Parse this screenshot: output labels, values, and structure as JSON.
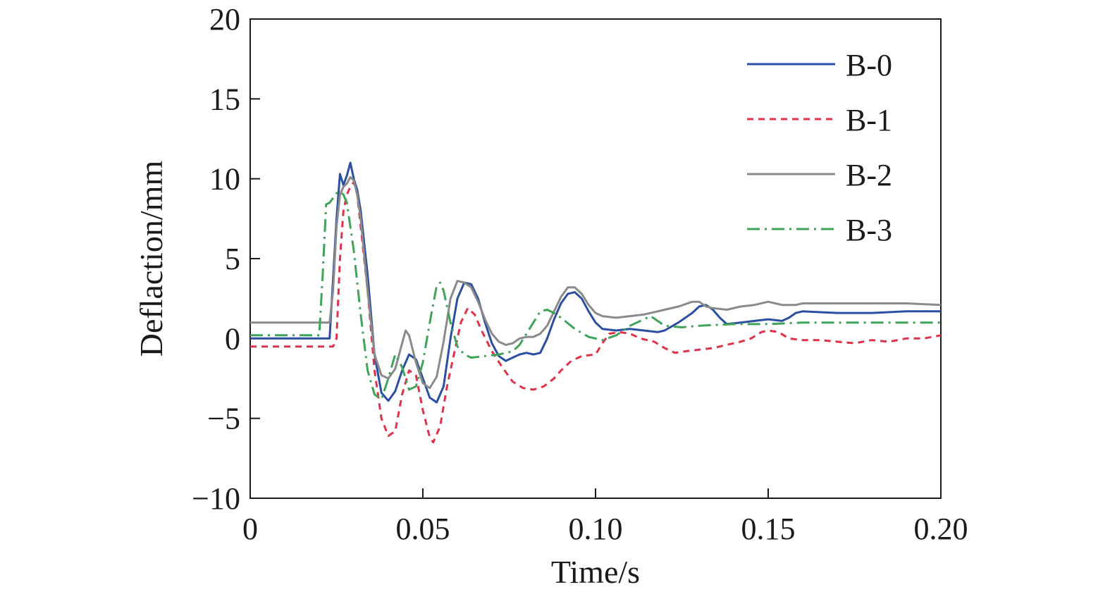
{
  "chart_data": {
    "type": "line",
    "xlabel": "Time/s",
    "ylabel": "Deflaction/mm",
    "xlim": [
      0,
      0.2
    ],
    "ylim": [
      -10,
      20
    ],
    "x_ticks": [
      0,
      0.05,
      0.1,
      0.15,
      0.2
    ],
    "x_tick_labels": [
      "0",
      "0.05",
      "0.10",
      "0.15",
      "0.20"
    ],
    "y_ticks": [
      -10,
      -5,
      0,
      5,
      10,
      15,
      20
    ],
    "y_tick_labels": [
      "−10",
      "−5",
      "0",
      "5",
      "10",
      "15",
      "20"
    ],
    "grid": false,
    "legend_position": "top-right",
    "series": [
      {
        "name": "B-0",
        "color": "#2b4ea2",
        "dash": "solid",
        "points": [
          [
            0,
            0
          ],
          [
            0.023,
            0
          ],
          [
            0.025,
            7.5
          ],
          [
            0.026,
            10.3
          ],
          [
            0.027,
            9.6
          ],
          [
            0.028,
            10.2
          ],
          [
            0.029,
            11
          ],
          [
            0.03,
            10
          ],
          [
            0.031,
            9.3
          ],
          [
            0.032,
            8
          ],
          [
            0.034,
            4
          ],
          [
            0.036,
            -1
          ],
          [
            0.038,
            -3.4
          ],
          [
            0.04,
            -3.9
          ],
          [
            0.042,
            -3.3
          ],
          [
            0.044,
            -2
          ],
          [
            0.046,
            -1
          ],
          [
            0.048,
            -1.3
          ],
          [
            0.05,
            -2.5
          ],
          [
            0.052,
            -3.7
          ],
          [
            0.054,
            -4
          ],
          [
            0.056,
            -3
          ],
          [
            0.058,
            0
          ],
          [
            0.06,
            2.5
          ],
          [
            0.062,
            3.5
          ],
          [
            0.064,
            3.4
          ],
          [
            0.066,
            2.5
          ],
          [
            0.068,
            1
          ],
          [
            0.07,
            -0.3
          ],
          [
            0.072,
            -1.1
          ],
          [
            0.074,
            -1.4
          ],
          [
            0.076,
            -1.2
          ],
          [
            0.078,
            -1
          ],
          [
            0.08,
            -0.9
          ],
          [
            0.082,
            -1
          ],
          [
            0.084,
            -0.9
          ],
          [
            0.086,
            0
          ],
          [
            0.088,
            1.2
          ],
          [
            0.09,
            2.2
          ],
          [
            0.092,
            2.8
          ],
          [
            0.094,
            2.9
          ],
          [
            0.096,
            2.5
          ],
          [
            0.098,
            1.7
          ],
          [
            0.1,
            1
          ],
          [
            0.102,
            0.6
          ],
          [
            0.106,
            0.5
          ],
          [
            0.11,
            0.6
          ],
          [
            0.114,
            0.5
          ],
          [
            0.118,
            0.4
          ],
          [
            0.12,
            0.5
          ],
          [
            0.124,
            1
          ],
          [
            0.128,
            1.6
          ],
          [
            0.13,
            2
          ],
          [
            0.132,
            2.1
          ],
          [
            0.134,
            1.8
          ],
          [
            0.136,
            1.3
          ],
          [
            0.138,
            0.9
          ],
          [
            0.142,
            1
          ],
          [
            0.146,
            1.1
          ],
          [
            0.15,
            1.2
          ],
          [
            0.154,
            1.1
          ],
          [
            0.156,
            1.3
          ],
          [
            0.158,
            1.6
          ],
          [
            0.16,
            1.7
          ],
          [
            0.17,
            1.6
          ],
          [
            0.18,
            1.6
          ],
          [
            0.19,
            1.7
          ],
          [
            0.2,
            1.7
          ]
        ]
      },
      {
        "name": "B-1",
        "color": "#e0314a",
        "dash": "dashed",
        "points": [
          [
            0,
            -0.5
          ],
          [
            0.024,
            -0.5
          ],
          [
            0.025,
            0
          ],
          [
            0.026,
            5
          ],
          [
            0.027,
            8
          ],
          [
            0.028,
            9
          ],
          [
            0.029,
            9.5
          ],
          [
            0.03,
            9.8
          ],
          [
            0.031,
            9
          ],
          [
            0.032,
            7
          ],
          [
            0.034,
            3
          ],
          [
            0.036,
            -2
          ],
          [
            0.038,
            -5
          ],
          [
            0.04,
            -6.1
          ],
          [
            0.042,
            -5.8
          ],
          [
            0.044,
            -3.5
          ],
          [
            0.046,
            -2
          ],
          [
            0.048,
            -2.3
          ],
          [
            0.05,
            -4.5
          ],
          [
            0.052,
            -6.2
          ],
          [
            0.053,
            -6.5
          ],
          [
            0.055,
            -5.5
          ],
          [
            0.057,
            -3
          ],
          [
            0.059,
            -1
          ],
          [
            0.061,
            1
          ],
          [
            0.063,
            1.9
          ],
          [
            0.065,
            1.5
          ],
          [
            0.067,
            0.5
          ],
          [
            0.07,
            -0.8
          ],
          [
            0.073,
            -1.8
          ],
          [
            0.076,
            -2.7
          ],
          [
            0.079,
            -3.1
          ],
          [
            0.082,
            -3.2
          ],
          [
            0.085,
            -3
          ],
          [
            0.088,
            -2.5
          ],
          [
            0.09,
            -2
          ],
          [
            0.093,
            -1.4
          ],
          [
            0.096,
            -1.1
          ],
          [
            0.1,
            -1
          ],
          [
            0.102,
            -0.3
          ],
          [
            0.104,
            0.3
          ],
          [
            0.107,
            0.4
          ],
          [
            0.11,
            0.3
          ],
          [
            0.113,
            0
          ],
          [
            0.117,
            -0.2
          ],
          [
            0.12,
            -0.6
          ],
          [
            0.123,
            -0.9
          ],
          [
            0.126,
            -0.8
          ],
          [
            0.13,
            -0.7
          ],
          [
            0.134,
            -0.6
          ],
          [
            0.138,
            -0.4
          ],
          [
            0.142,
            -0.2
          ],
          [
            0.145,
            0
          ],
          [
            0.148,
            0.4
          ],
          [
            0.15,
            0.5
          ],
          [
            0.153,
            0.4
          ],
          [
            0.156,
            0
          ],
          [
            0.16,
            -0.1
          ],
          [
            0.165,
            -0.1
          ],
          [
            0.17,
            -0.2
          ],
          [
            0.175,
            -0.3
          ],
          [
            0.18,
            -0.1
          ],
          [
            0.185,
            -0.2
          ],
          [
            0.19,
            0
          ],
          [
            0.195,
            0
          ],
          [
            0.2,
            0.2
          ]
        ]
      },
      {
        "name": "B-2",
        "color": "#8a8a8a",
        "dash": "solid",
        "points": [
          [
            0,
            1
          ],
          [
            0.023,
            1
          ],
          [
            0.024,
            3
          ],
          [
            0.025,
            7
          ],
          [
            0.026,
            9
          ],
          [
            0.027,
            9.5
          ],
          [
            0.028,
            9.7
          ],
          [
            0.029,
            10.1
          ],
          [
            0.03,
            9.9
          ],
          [
            0.031,
            9
          ],
          [
            0.032,
            7.5
          ],
          [
            0.034,
            3
          ],
          [
            0.036,
            -1
          ],
          [
            0.038,
            -2.3
          ],
          [
            0.04,
            -2.5
          ],
          [
            0.042,
            -1.9
          ],
          [
            0.044,
            -0.3
          ],
          [
            0.045,
            0.5
          ],
          [
            0.046,
            0.2
          ],
          [
            0.048,
            -1.5
          ],
          [
            0.05,
            -2.8
          ],
          [
            0.052,
            -3.1
          ],
          [
            0.054,
            -2.4
          ],
          [
            0.056,
            -0.2
          ],
          [
            0.058,
            2.5
          ],
          [
            0.06,
            3.6
          ],
          [
            0.062,
            3.5
          ],
          [
            0.064,
            3.2
          ],
          [
            0.066,
            2.3
          ],
          [
            0.068,
            1.2
          ],
          [
            0.07,
            0.3
          ],
          [
            0.072,
            -0.2
          ],
          [
            0.074,
            -0.4
          ],
          [
            0.076,
            -0.3
          ],
          [
            0.078,
            0
          ],
          [
            0.08,
            0.1
          ],
          [
            0.082,
            0.1
          ],
          [
            0.084,
            0.3
          ],
          [
            0.086,
            0.8
          ],
          [
            0.088,
            1.7
          ],
          [
            0.09,
            2.6
          ],
          [
            0.092,
            3.2
          ],
          [
            0.094,
            3.2
          ],
          [
            0.096,
            2.8
          ],
          [
            0.098,
            2.1
          ],
          [
            0.1,
            1.6
          ],
          [
            0.102,
            1.4
          ],
          [
            0.106,
            1.3
          ],
          [
            0.11,
            1.4
          ],
          [
            0.114,
            1.5
          ],
          [
            0.118,
            1.7
          ],
          [
            0.12,
            1.8
          ],
          [
            0.124,
            2
          ],
          [
            0.128,
            2.3
          ],
          [
            0.13,
            2.3
          ],
          [
            0.132,
            2
          ],
          [
            0.134,
            1.9
          ],
          [
            0.138,
            1.8
          ],
          [
            0.142,
            2
          ],
          [
            0.146,
            2.1
          ],
          [
            0.15,
            2.3
          ],
          [
            0.154,
            2.1
          ],
          [
            0.158,
            2.1
          ],
          [
            0.16,
            2.2
          ],
          [
            0.17,
            2.2
          ],
          [
            0.18,
            2.2
          ],
          [
            0.19,
            2.2
          ],
          [
            0.2,
            2.1
          ]
        ]
      },
      {
        "name": "B-3",
        "color": "#3fa45a",
        "dash": "dash-dot",
        "points": [
          [
            0,
            0.2
          ],
          [
            0.02,
            0.2
          ],
          [
            0.021,
            4
          ],
          [
            0.022,
            8.4
          ],
          [
            0.023,
            8.5
          ],
          [
            0.024,
            8.8
          ],
          [
            0.025,
            9.1
          ],
          [
            0.026,
            9.2
          ],
          [
            0.027,
            9
          ],
          [
            0.028,
            8.5
          ],
          [
            0.029,
            7
          ],
          [
            0.03,
            5.5
          ],
          [
            0.032,
            1.5
          ],
          [
            0.034,
            -2
          ],
          [
            0.036,
            -3.5
          ],
          [
            0.038,
            -3.8
          ],
          [
            0.04,
            -2.5
          ],
          [
            0.042,
            -1
          ],
          [
            0.044,
            -1.8
          ],
          [
            0.046,
            -3.2
          ],
          [
            0.048,
            -3
          ],
          [
            0.05,
            -1.5
          ],
          [
            0.052,
            1
          ],
          [
            0.054,
            3.3
          ],
          [
            0.055,
            3.5
          ],
          [
            0.056,
            3
          ],
          [
            0.058,
            1
          ],
          [
            0.06,
            -0.5
          ],
          [
            0.062,
            -1
          ],
          [
            0.064,
            -1.2
          ],
          [
            0.068,
            -1.1
          ],
          [
            0.072,
            -1
          ],
          [
            0.076,
            -0.8
          ],
          [
            0.078,
            -0.4
          ],
          [
            0.08,
            0.3
          ],
          [
            0.082,
            1
          ],
          [
            0.084,
            1.7
          ],
          [
            0.086,
            1.8
          ],
          [
            0.088,
            1.6
          ],
          [
            0.09,
            1.3
          ],
          [
            0.094,
            0.6
          ],
          [
            0.098,
            0.1
          ],
          [
            0.102,
            -0.1
          ],
          [
            0.106,
            0.2
          ],
          [
            0.11,
            0.8
          ],
          [
            0.114,
            1.2
          ],
          [
            0.116,
            1.4
          ],
          [
            0.118,
            1.1
          ],
          [
            0.12,
            0.8
          ],
          [
            0.125,
            0.7
          ],
          [
            0.13,
            0.8
          ],
          [
            0.14,
            0.9
          ],
          [
            0.145,
            0.9
          ],
          [
            0.15,
            0.9
          ],
          [
            0.16,
            1
          ],
          [
            0.17,
            1
          ],
          [
            0.18,
            1
          ],
          [
            0.19,
            1
          ],
          [
            0.2,
            1
          ]
        ]
      }
    ]
  }
}
